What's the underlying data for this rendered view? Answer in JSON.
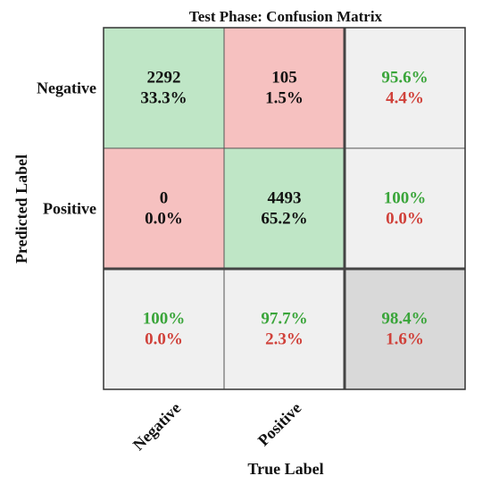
{
  "chart_data": {
    "type": "heatmap",
    "title": "Test Phase: Confusion Matrix",
    "xlabel": "True Label",
    "ylabel": "Predicted Label",
    "x_categories": [
      "Negative",
      "Positive"
    ],
    "y_categories": [
      "Negative",
      "Positive"
    ],
    "cells": [
      [
        {
          "count": "2292",
          "percent": "33.3%"
        },
        {
          "count": "105",
          "percent": "1.5%"
        }
      ],
      [
        {
          "count": "0",
          "percent": "0.0%"
        },
        {
          "count": "4493",
          "percent": "65.2%"
        }
      ]
    ],
    "row_summary": [
      {
        "correct": "95.6%",
        "error": "4.4%"
      },
      {
        "correct": "100%",
        "error": "0.0%"
      }
    ],
    "col_summary": [
      {
        "correct": "100%",
        "error": "0.0%"
      },
      {
        "correct": "97.7%",
        "error": "2.3%"
      }
    ],
    "overall": {
      "correct": "98.4%",
      "error": "1.6%"
    },
    "colors": {
      "correct_cell": "#bfe6c6",
      "error_cell": "#f6c1c0",
      "summary_cell": "#f0f0f0",
      "overall_cell": "#d9d9d9",
      "correct_text": "#3aa53a",
      "error_text": "#d0413a",
      "cell_text": "#111111",
      "border": "#555555"
    }
  }
}
